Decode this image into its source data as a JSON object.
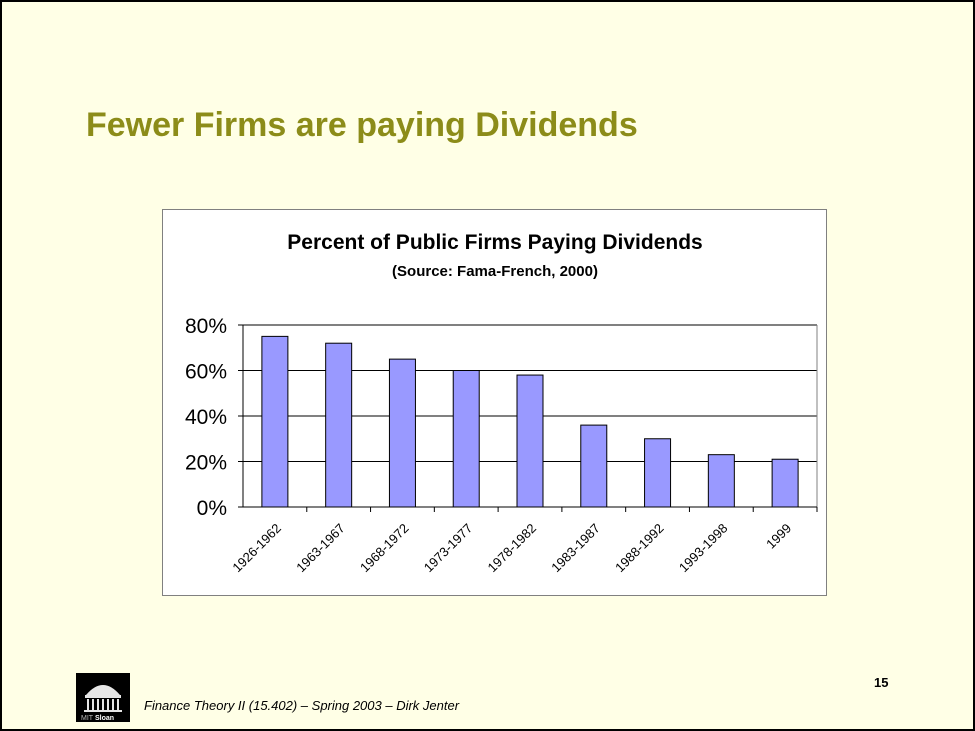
{
  "slide": {
    "title": "Fewer Firms are paying Dividends",
    "page_number": "15",
    "footer": "Finance Theory II (15.402) – Spring 2003 – Dirk Jenter",
    "logo_text": {
      "prefix": "MIT",
      "suffix": "Sloan"
    }
  },
  "colors": {
    "title": "#8c8c19",
    "background": "#ffffe6",
    "bar_fill": "#9999ff"
  },
  "chart_data": {
    "type": "bar",
    "title": "Percent of Public Firms Paying Dividends",
    "subtitle": "(Source:  Fama-French, 2000)",
    "categories": [
      "1926-1962",
      "1963-1967",
      "1968-1972",
      "1973-1977",
      "1978-1982",
      "1983-1987",
      "1988-1992",
      "1993-1998",
      "1999"
    ],
    "values": [
      75,
      72,
      65,
      60,
      58,
      36,
      30,
      23,
      21
    ],
    "ylim": [
      0,
      80
    ],
    "yticks": [
      0,
      20,
      40,
      60,
      80
    ],
    "ytick_labels": [
      "0%",
      "20%",
      "40%",
      "60%",
      "80%"
    ],
    "grid": true,
    "xlabel": "",
    "ylabel": ""
  }
}
